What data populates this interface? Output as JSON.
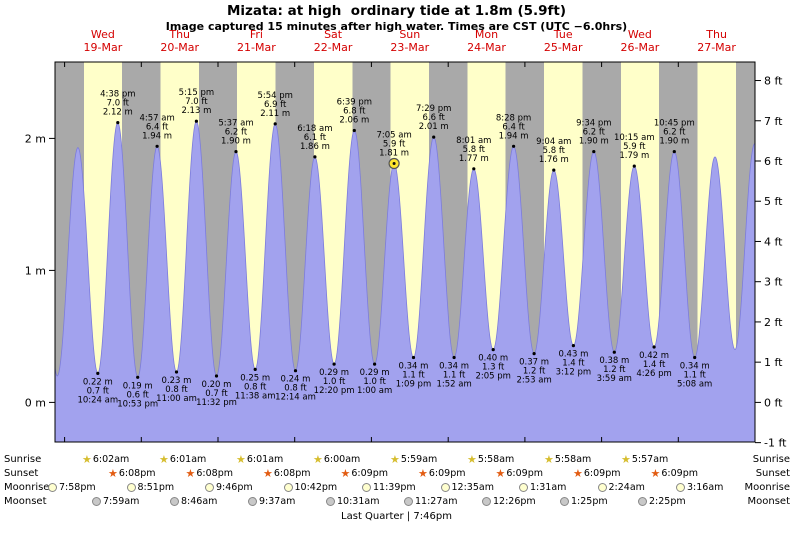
{
  "page": {
    "title": "Mizata: at high  ordinary tide at 1.8m (5.9ft)",
    "subtitle": "Image captured 15 minutes after high water. Times are CST (UTC −6.0hrs)"
  },
  "chart_data": {
    "type": "area",
    "title": "Mizata: at high  ordinary tide at 1.8m (5.9ft)",
    "subtitle": "Image captured 15 minutes after high water. Times are CST (UTC −6.0hrs)",
    "x_days": [
      {
        "dow": "Wed",
        "date": "19-Mar"
      },
      {
        "dow": "Thu",
        "date": "20-Mar"
      },
      {
        "dow": "Fri",
        "date": "21-Mar"
      },
      {
        "dow": "Sat",
        "date": "22-Mar"
      },
      {
        "dow": "Sun",
        "date": "23-Mar"
      },
      {
        "dow": "Mon",
        "date": "24-Mar"
      },
      {
        "dow": "Tue",
        "date": "25-Mar"
      },
      {
        "dow": "Wed",
        "date": "26-Mar"
      },
      {
        "dow": "Thu",
        "date": "27-Mar"
      }
    ],
    "y_axis": {
      "left_labels": [
        "0 m",
        "1 m",
        "2 m"
      ],
      "left_values_m": [
        0,
        1,
        2
      ],
      "right_labels": [
        "-1 ft",
        "0 ft",
        "1 ft",
        "2 ft",
        "3 ft",
        "4 ft",
        "5 ft",
        "6 ft",
        "7 ft",
        "8 ft"
      ],
      "right_values_ft": [
        -1,
        0,
        1,
        2,
        3,
        4,
        5,
        6,
        7,
        8
      ]
    },
    "time_origin": "hours from 00:00 Wed 19-Mar",
    "range_hours": [
      -3,
      216
    ],
    "extremes": [
      {
        "t": -8.3,
        "type": "high",
        "m": 2.1
      },
      {
        "t": -2.3,
        "type": "low",
        "m": 0.2
      },
      {
        "t": 4.17,
        "type": "high",
        "m": 1.93
      },
      {
        "t": 10.4,
        "type": "low",
        "m": 0.22,
        "label": [
          "0.22 m",
          "0.7 ft",
          "10:24 am"
        ]
      },
      {
        "t": 16.633,
        "type": "high",
        "m": 2.12,
        "label": [
          "4:38 pm",
          "7.0 ft",
          "2.12 m"
        ]
      },
      {
        "t": 22.883,
        "type": "low",
        "m": 0.19,
        "label": [
          "0.19 m",
          "0.6 ft",
          "10:53 pm"
        ]
      },
      {
        "t": 28.95,
        "type": "high",
        "m": 1.94,
        "label": [
          "4:57 am",
          "6.4 ft",
          "1.94 m"
        ]
      },
      {
        "t": 35.0,
        "type": "low",
        "m": 0.23,
        "label": [
          "0.23 m",
          "0.8 ft",
          "11:00 am"
        ]
      },
      {
        "t": 41.25,
        "type": "high",
        "m": 2.13,
        "label": [
          "5:15 pm",
          "7.0 ft",
          "2.13 m"
        ]
      },
      {
        "t": 47.533,
        "type": "low",
        "m": 0.2,
        "label": [
          "0.20 m",
          "0.7 ft",
          "11:32 pm"
        ]
      },
      {
        "t": 53.617,
        "type": "high",
        "m": 1.9,
        "label": [
          "5:37 am",
          "6.2 ft",
          "1.90 m"
        ]
      },
      {
        "t": 59.633,
        "type": "low",
        "m": 0.25,
        "label": [
          "0.25 m",
          "0.8 ft",
          "11:38 am"
        ]
      },
      {
        "t": 65.9,
        "type": "high",
        "m": 2.11,
        "label": [
          "5:54 pm",
          "6.9 ft",
          "2.11 m"
        ]
      },
      {
        "t": 72.233,
        "type": "low",
        "m": 0.24,
        "label": [
          "0.24 m",
          "0.8 ft",
          "12:14 am"
        ]
      },
      {
        "t": 78.3,
        "type": "high",
        "m": 1.86,
        "label": [
          "6:18 am",
          "6.1 ft",
          "1.86 m"
        ]
      },
      {
        "t": 84.333,
        "type": "low",
        "m": 0.29,
        "label": [
          "0.29 m",
          "1.0 ft",
          "12:20 pm"
        ]
      },
      {
        "t": 90.65,
        "type": "high",
        "m": 2.06,
        "label": [
          "6:39 pm",
          "6.8 ft",
          "2.06 m"
        ]
      },
      {
        "t": 97.0,
        "type": "low",
        "m": 0.29,
        "label": [
          "0.29 m",
          "1.0 ft",
          "1:00 am"
        ]
      },
      {
        "t": 103.083,
        "type": "high",
        "m": 1.81,
        "label": [
          "7:05 am",
          "5.9 ft",
          "1.81 m"
        ],
        "marker": "sun"
      },
      {
        "t": 109.15,
        "type": "low",
        "m": 0.34,
        "label": [
          "0.34 m",
          "1.1 ft",
          "1:09 pm"
        ]
      },
      {
        "t": 115.483,
        "type": "high",
        "m": 2.01,
        "label": [
          "7:29 pm",
          "6.6 ft",
          "2.01 m"
        ]
      },
      {
        "t": 121.867,
        "type": "low",
        "m": 0.34,
        "label": [
          "0.34 m",
          "1.1 ft",
          "1:52 am"
        ]
      },
      {
        "t": 128.017,
        "type": "high",
        "m": 1.77,
        "label": [
          "8:01 am",
          "5.8 ft",
          "1.77 m"
        ]
      },
      {
        "t": 134.083,
        "type": "low",
        "m": 0.4,
        "label": [
          "0.40 m",
          "1.3 ft",
          "2:05 pm"
        ]
      },
      {
        "t": 140.467,
        "type": "high",
        "m": 1.94,
        "label": [
          "8:28 pm",
          "6.4 ft",
          "1.94 m"
        ]
      },
      {
        "t": 146.883,
        "type": "low",
        "m": 0.37,
        "label": [
          "0.37 m",
          "1.2 ft",
          "2:53 am"
        ]
      },
      {
        "t": 153.067,
        "type": "high",
        "m": 1.76,
        "label": [
          "9:04 am",
          "5.8 ft",
          "1.76 m"
        ]
      },
      {
        "t": 159.2,
        "type": "low",
        "m": 0.43,
        "label": [
          "0.43 m",
          "1.4 ft",
          "3:12 pm"
        ]
      },
      {
        "t": 165.567,
        "type": "high",
        "m": 1.9,
        "label": [
          "9:34 pm",
          "6.2 ft",
          "1.90 m"
        ]
      },
      {
        "t": 171.983,
        "type": "low",
        "m": 0.38,
        "label": [
          "0.38 m",
          "1.2 ft",
          "3:59 am"
        ]
      },
      {
        "t": 178.25,
        "type": "high",
        "m": 1.79,
        "label": [
          "10:15 am",
          "5.9 ft",
          "1.79 m"
        ]
      },
      {
        "t": 184.433,
        "type": "low",
        "m": 0.42,
        "label": [
          "0.42 m",
          "1.4 ft",
          "4:26 pm"
        ]
      },
      {
        "t": 190.75,
        "type": "high",
        "m": 1.9,
        "label": [
          "10:45 pm",
          "6.2 ft",
          "1.90 m"
        ]
      },
      {
        "t": 197.133,
        "type": "low",
        "m": 0.34,
        "label": [
          "0.34 m",
          "1.1 ft",
          "5:08 am"
        ]
      },
      {
        "t": 203.5,
        "type": "high",
        "m": 1.86
      },
      {
        "t": 209.75,
        "type": "low",
        "m": 0.4
      },
      {
        "t": 215.9,
        "type": "high",
        "m": 1.96
      },
      {
        "t": 222.0,
        "type": "low",
        "m": 0.4
      }
    ],
    "colors": {
      "day_band": "#ffffc9",
      "night_band": "#a9a9a9",
      "tide_fill": "#a2a2ee",
      "tide_stroke": "#7c7cdc",
      "day_label": "#d40000"
    }
  },
  "astro": {
    "rows": [
      {
        "name": "Sunrise",
        "icon": "sunrise-star-icon",
        "times": [
          "6:02am",
          "6:01am",
          "6:01am",
          "6:00am",
          "5:59am",
          "5:58am",
          "5:58am",
          "5:57am"
        ]
      },
      {
        "name": "Sunset",
        "icon": "sunset-star-icon",
        "times": [
          "6:08pm",
          "6:08pm",
          "6:08pm",
          "6:09pm",
          "6:09pm",
          "6:09pm",
          "6:09pm",
          "6:09pm"
        ]
      },
      {
        "name": "Moonrise",
        "icon": "moonrise-circle-icon",
        "times": [
          "7:58pm",
          "8:51pm",
          "9:46pm",
          "10:42pm",
          "11:39pm",
          "12:35am",
          "1:31am",
          "2:24am",
          "3:16am"
        ]
      },
      {
        "name": "Moonset",
        "icon": "moonset-circle-icon",
        "times": [
          "7:59am",
          "8:46am",
          "9:37am",
          "10:31am",
          "11:27am",
          "12:26pm",
          "1:25pm",
          "2:25pm"
        ]
      }
    ],
    "moon_phase": "Last Quarter | 7:46pm"
  }
}
